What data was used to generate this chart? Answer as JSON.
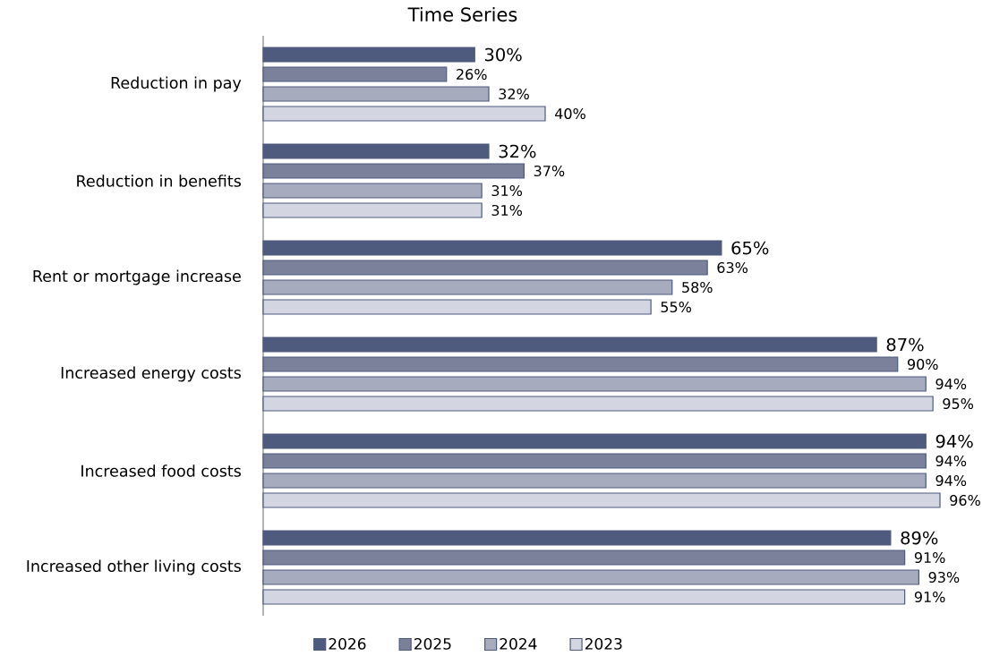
{
  "chart_data": {
    "type": "bar",
    "orientation": "horizontal",
    "title": "Time Series",
    "categories": [
      "Reduction in pay",
      "Reduction in benefits",
      "Rent or mortgage increase",
      "Increased energy costs",
      "Increased food costs",
      "Increased other living costs"
    ],
    "series": [
      {
        "name": "2026",
        "color": "#4e5a7e",
        "values": [
          30,
          32,
          65,
          87,
          94,
          89
        ],
        "value_labels": [
          "30%",
          "32%",
          "65%",
          "87%",
          "94%",
          "89%"
        ]
      },
      {
        "name": "2025",
        "color": "#7b809b",
        "values": [
          26,
          37,
          63,
          90,
          94,
          91
        ],
        "value_labels": [
          "26%",
          "37%",
          "63%",
          "90%",
          "94%",
          "91%"
        ]
      },
      {
        "name": "2024",
        "color": "#a6abbe",
        "values": [
          32,
          31,
          58,
          94,
          94,
          93
        ],
        "value_labels": [
          "32%",
          "31%",
          "58%",
          "94%",
          "94%",
          "93%"
        ]
      },
      {
        "name": "2023",
        "color": "#d3d6e0",
        "values": [
          40,
          31,
          55,
          95,
          96,
          91
        ],
        "value_labels": [
          "40%",
          "31%",
          "55%",
          "95%",
          "96%",
          "91%"
        ]
      }
    ],
    "legend": "bottom",
    "tick_labels": "y"
  }
}
